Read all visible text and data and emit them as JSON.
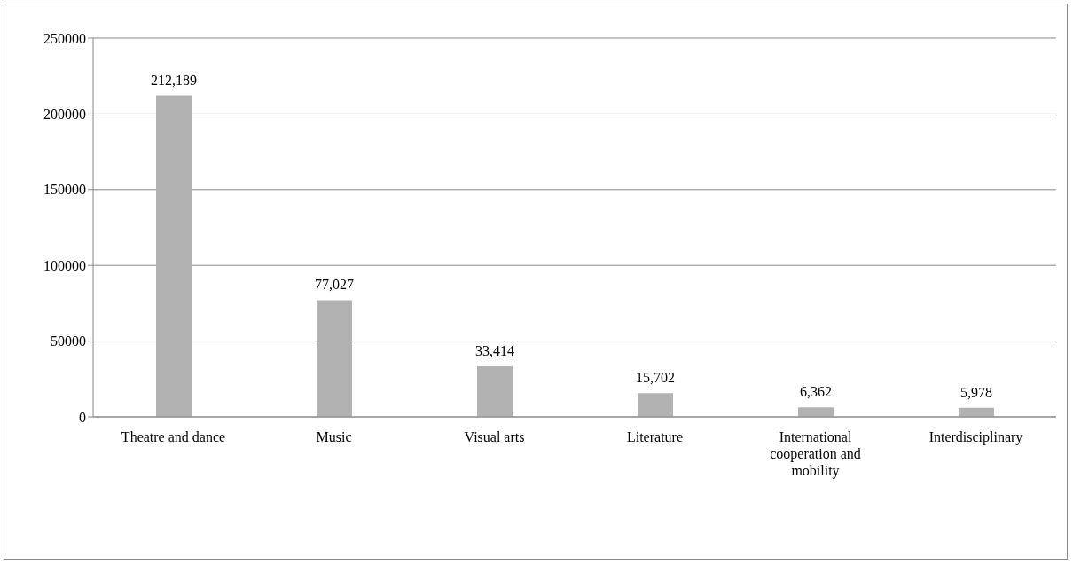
{
  "chart_data": {
    "type": "bar",
    "categories": [
      "Theatre and dance",
      "Music",
      "Visual arts",
      "Literature",
      "International cooperation and mobility",
      "Interdisciplinary"
    ],
    "values": [
      212189,
      77027,
      33414,
      15702,
      6362,
      5978
    ],
    "value_labels": [
      "212,189",
      "77,027",
      "33,414",
      "15,702",
      "6,362",
      "5,978"
    ],
    "color": "#b2b2b2",
    "ylim": [
      0,
      250000
    ],
    "yticks": [
      0,
      50000,
      100000,
      150000,
      200000,
      250000
    ],
    "grid": "y",
    "legend": false
  }
}
